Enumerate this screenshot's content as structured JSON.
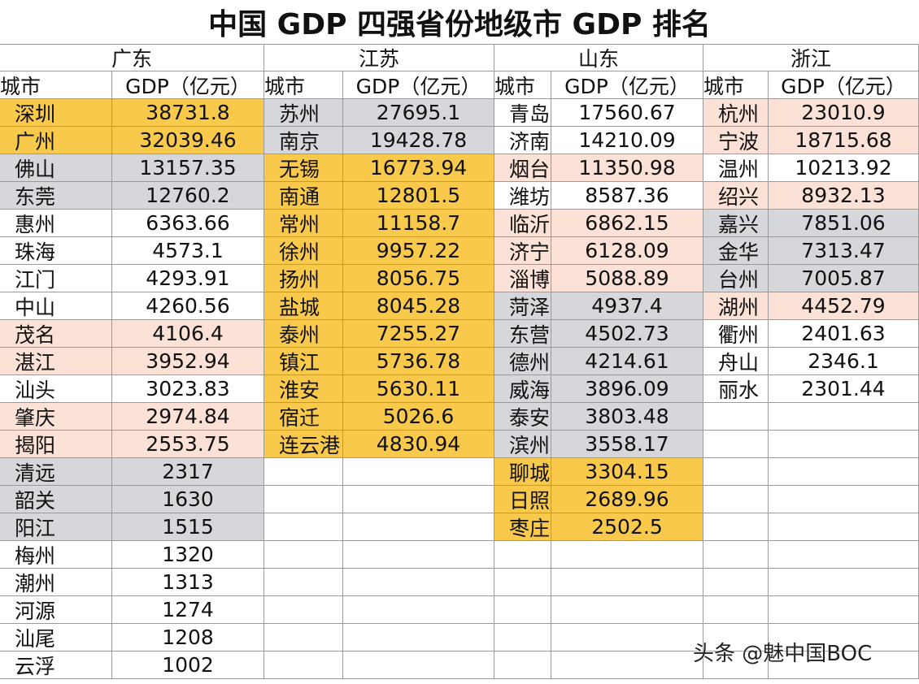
{
  "title": "中国 GDP 四强省份地级市 GDP 排名",
  "watermark": "头条 @魅中国BOC",
  "provinces": [
    {
      "name": "广东",
      "headers": [
        "城市",
        "GDP（亿元）"
      ],
      "rows": [
        [
          "深圳",
          "38731.8"
        ],
        [
          "广州",
          "32039.46"
        ],
        [
          "佛山",
          "13157.35"
        ],
        [
          "东莞",
          "12760.2"
        ],
        [
          "惠州",
          "6363.66"
        ],
        [
          "珠海",
          "4573.1"
        ],
        [
          "江门",
          "4293.91"
        ],
        [
          "中山",
          "4260.56"
        ],
        [
          "茂名",
          "4106.4"
        ],
        [
          "湛江",
          "3952.94"
        ],
        [
          "汕头",
          "3023.83"
        ],
        [
          "肇庆",
          "2974.84"
        ],
        [
          "揭阳",
          "2553.75"
        ],
        [
          "清远",
          "2317"
        ],
        [
          "韶关",
          "1630"
        ],
        [
          "阳江",
          "1515"
        ],
        [
          "梅州",
          "1320"
        ],
        [
          "潮州",
          "1313"
        ],
        [
          "河源",
          "1274"
        ],
        [
          "汕尾",
          "1208"
        ],
        [
          "云浮",
          "1002"
        ]
      ],
      "row_colors": [
        "#f9c94c",
        "#f9c94c",
        "#d6d7db",
        "#d6d7db",
        "#ffffff",
        "#ffffff",
        "#ffffff",
        "#ffffff",
        "#fbe1d6",
        "#fbe1d6",
        "#ffffff",
        "#fbe1d6",
        "#fbe1d6",
        "#d6d7db",
        "#d6d7db",
        "#d6d7db",
        "#ffffff",
        "#ffffff",
        "#ffffff",
        "#ffffff",
        "#ffffff"
      ]
    },
    {
      "name": "江苏",
      "headers": [
        "城市",
        "GDP（亿元）"
      ],
      "rows": [
        [
          "苏州",
          "27695.1"
        ],
        [
          "南京",
          "19428.78"
        ],
        [
          "无锡",
          "16773.94"
        ],
        [
          "南通",
          "12801.5"
        ],
        [
          "常州",
          "11158.7"
        ],
        [
          "徐州",
          "9957.22"
        ],
        [
          "扬州",
          "8056.75"
        ],
        [
          "盐城",
          "8045.28"
        ],
        [
          "泰州",
          "7255.27"
        ],
        [
          "镇江",
          "5736.78"
        ],
        [
          "淮安",
          "5630.11"
        ],
        [
          "宿迁",
          "5026.6"
        ],
        [
          "连云港",
          "4830.94"
        ]
      ],
      "row_colors": [
        "#d6d7db",
        "#d6d7db",
        "#f9c94c",
        "#f9c94c",
        "#f9c94c",
        "#f9c94c",
        "#f9c94c",
        "#f9c94c",
        "#f9c94c",
        "#f9c94c",
        "#f9c94c",
        "#f9c94c",
        "#f9c94c"
      ]
    },
    {
      "name": "山东",
      "headers": [
        "城市",
        "GDP（亿元）"
      ],
      "rows": [
        [
          "青岛",
          "17560.67"
        ],
        [
          "济南",
          "14210.09"
        ],
        [
          "烟台",
          "11350.98"
        ],
        [
          "潍坊",
          "8587.36"
        ],
        [
          "临沂",
          "6862.15"
        ],
        [
          "济宁",
          "6128.09"
        ],
        [
          "淄博",
          "5088.89"
        ],
        [
          "菏泽",
          "4937.4"
        ],
        [
          "东营",
          "4502.73"
        ],
        [
          "德州",
          "4214.61"
        ],
        [
          "威海",
          "3896.09"
        ],
        [
          "泰安",
          "3803.48"
        ],
        [
          "滨州",
          "3558.17"
        ],
        [
          "聊城",
          "3304.15"
        ],
        [
          "日照",
          "2689.96"
        ],
        [
          "枣庄",
          "2502.5"
        ]
      ],
      "row_colors": [
        "#ffffff",
        "#ffffff",
        "#fbe1d6",
        "#ffffff",
        "#fbe1d6",
        "#fbe1d6",
        "#fbe1d6",
        "#d6d7db",
        "#d6d7db",
        "#d6d7db",
        "#d6d7db",
        "#d6d7db",
        "#d6d7db",
        "#f9c94c",
        "#f9c94c",
        "#f9c94c"
      ]
    },
    {
      "name": "浙江",
      "headers": [
        "城市",
        "GDP（亿元）"
      ],
      "rows": [
        [
          "杭州",
          "23010.9"
        ],
        [
          "宁波",
          "18715.68"
        ],
        [
          "温州",
          "10213.92"
        ],
        [
          "绍兴",
          "8932.13"
        ],
        [
          "嘉兴",
          "7851.06"
        ],
        [
          "金华",
          "7313.47"
        ],
        [
          "台州",
          "7005.87"
        ],
        [
          "湖州",
          "4452.79"
        ],
        [
          "衢州",
          "2401.63"
        ],
        [
          "舟山",
          "2346.1"
        ],
        [
          "丽水",
          "2301.44"
        ]
      ],
      "row_colors": [
        "#fbe1d6",
        "#fbe1d6",
        "#ffffff",
        "#fbe1d6",
        "#d6d7db",
        "#d6d7db",
        "#d6d7db",
        "#fbe1d6",
        "#ffffff",
        "#ffffff",
        "#ffffff"
      ]
    }
  ]
}
